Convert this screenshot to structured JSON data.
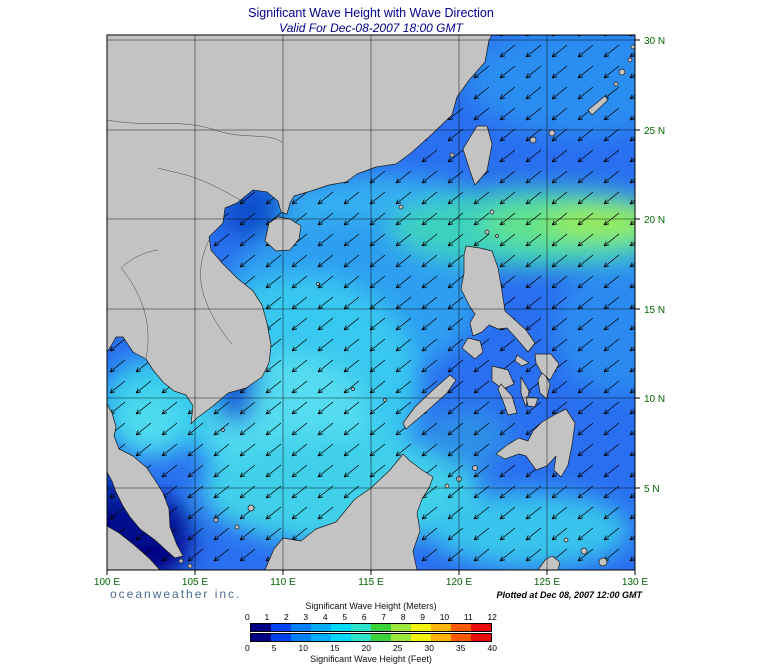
{
  "header": {
    "title": "Significant Wave Height with Wave Direction",
    "subtitle": "Valid For Dec-08-2007 18:00 GMT"
  },
  "axes": {
    "lon": [
      "100 E",
      "105 E",
      "110 E",
      "115 E",
      "120 E",
      "125 E",
      "130 E"
    ],
    "lat": [
      "30 N",
      "25 N",
      "20 N",
      "15 N",
      "10 N",
      "5 N"
    ]
  },
  "branding": {
    "name": "oceanweather inc."
  },
  "annotations": {
    "plotted_at": "Plotted at Dec 08, 2007 12:00 GMT"
  },
  "legend": {
    "meters_title": "Significant Wave Height (Meters)",
    "feet_title": "Significant Wave Height (Feet)",
    "meters_ticks": [
      "0",
      "1",
      "2",
      "3",
      "4",
      "5",
      "6",
      "7",
      "8",
      "9",
      "10",
      "11",
      "12"
    ],
    "feet_ticks": [
      "0",
      "5",
      "10",
      "15",
      "20",
      "25",
      "30",
      "35",
      "40"
    ],
    "palette": [
      "#000084",
      "#0041f0",
      "#0080ff",
      "#00acff",
      "#00d8f8",
      "#2ee4c8",
      "#3cd23c",
      "#9ce63c",
      "#f2f20c",
      "#ffb400",
      "#ff5a00",
      "#e80c0c"
    ]
  },
  "chart_data": {
    "type": "heatmap",
    "title": "Significant Wave Height with Wave Direction",
    "valid_time": "Dec-08-2007 18:00 GMT",
    "x_range_deg_east": [
      100,
      130
    ],
    "y_range_deg_north": [
      0,
      30
    ],
    "colorbar_meters_range": [
      0,
      12
    ],
    "colorbar_feet_range": [
      0,
      40
    ],
    "approx_field_m": [
      {
        "lon": 101,
        "lat": 2,
        "value": 0.5
      },
      {
        "lon": 102,
        "lat": 11,
        "value": 3
      },
      {
        "lon": 110,
        "lat": 9,
        "value": 4
      },
      {
        "lon": 113,
        "lat": 17,
        "value": 3
      },
      {
        "lon": 121,
        "lat": 20,
        "value": 4.5
      },
      {
        "lon": 126,
        "lat": 19,
        "value": 5.5
      },
      {
        "lon": 127,
        "lat": 10,
        "value": 2.5
      },
      {
        "lon": 126,
        "lat": 27,
        "value": 2.5
      },
      {
        "lon": 118,
        "lat": 24,
        "value": 2
      }
    ],
    "vectors": "arrows show wave direction, predominantly toward the southwest"
  }
}
